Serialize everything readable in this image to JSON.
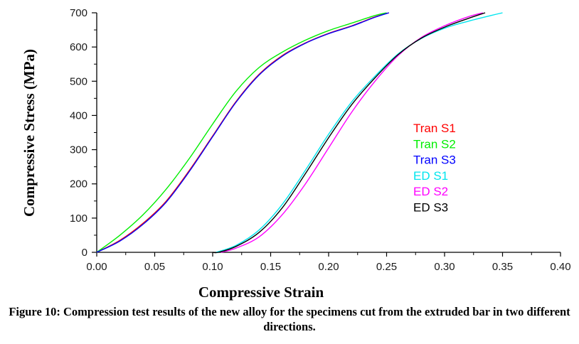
{
  "caption": "Figure 10: Compression test results of the new alloy for the specimens cut from the extruded bar in two different directions.",
  "chart_data": {
    "type": "line",
    "title": "",
    "xlabel": "Compressive Strain",
    "ylabel": "Compressive Stress (MPa)",
    "xlim": [
      0.0,
      0.4
    ],
    "ylim": [
      0,
      700
    ],
    "xticks": [
      "0.00",
      "0.05",
      "0.10",
      "0.15",
      "0.20",
      "0.25",
      "0.30",
      "0.35",
      "0.40"
    ],
    "yticks": [
      "0",
      "100",
      "200",
      "300",
      "400",
      "500",
      "600",
      "700"
    ],
    "grid": false,
    "legend_position": "center-right",
    "series": [
      {
        "name": "Tran S1",
        "color": "#ff0000",
        "x": [
          0.0,
          0.02,
          0.04,
          0.06,
          0.08,
          0.1,
          0.12,
          0.14,
          0.16,
          0.18,
          0.2,
          0.22,
          0.24,
          0.252
        ],
        "y": [
          0,
          35,
          85,
          150,
          240,
          340,
          440,
          520,
          575,
          612,
          640,
          662,
          688,
          700
        ]
      },
      {
        "name": "Tran S2",
        "color": "#00ee00",
        "x": [
          0.0,
          0.02,
          0.04,
          0.06,
          0.08,
          0.1,
          0.12,
          0.14,
          0.16,
          0.18,
          0.2,
          0.22,
          0.24,
          0.25
        ],
        "y": [
          0,
          50,
          110,
          185,
          275,
          375,
          470,
          540,
          585,
          620,
          648,
          670,
          692,
          700
        ]
      },
      {
        "name": "Tran S3",
        "color": "#0000ff",
        "x": [
          0.0,
          0.02,
          0.04,
          0.06,
          0.08,
          0.1,
          0.12,
          0.14,
          0.16,
          0.18,
          0.2,
          0.22,
          0.24,
          0.252
        ],
        "y": [
          0,
          33,
          82,
          147,
          237,
          338,
          438,
          518,
          573,
          611,
          639,
          661,
          687,
          700
        ]
      },
      {
        "name": "ED S1",
        "color": "#00e5ee",
        "x": [
          0.103,
          0.12,
          0.14,
          0.16,
          0.18,
          0.2,
          0.22,
          0.24,
          0.26,
          0.28,
          0.3,
          0.32,
          0.34,
          0.35
        ],
        "y": [
          0,
          20,
          65,
          140,
          240,
          345,
          440,
          515,
          580,
          625,
          655,
          675,
          692,
          700
        ]
      },
      {
        "name": "ED S2",
        "color": "#ff00ff",
        "x": [
          0.107,
          0.12,
          0.14,
          0.16,
          0.18,
          0.2,
          0.22,
          0.24,
          0.26,
          0.28,
          0.3,
          0.32,
          0.333
        ],
        "y": [
          0,
          12,
          45,
          110,
          200,
          305,
          410,
          500,
          575,
          628,
          662,
          688,
          700
        ]
      },
      {
        "name": "ED S3",
        "color": "#000000",
        "x": [
          0.1,
          0.105,
          0.12,
          0.14,
          0.16,
          0.18,
          0.2,
          0.22,
          0.24,
          0.26,
          0.28,
          0.3,
          0.32,
          0.335
        ],
        "y": [
          0,
          0,
          17,
          58,
          130,
          230,
          335,
          432,
          510,
          578,
          626,
          658,
          683,
          700
        ]
      }
    ]
  }
}
